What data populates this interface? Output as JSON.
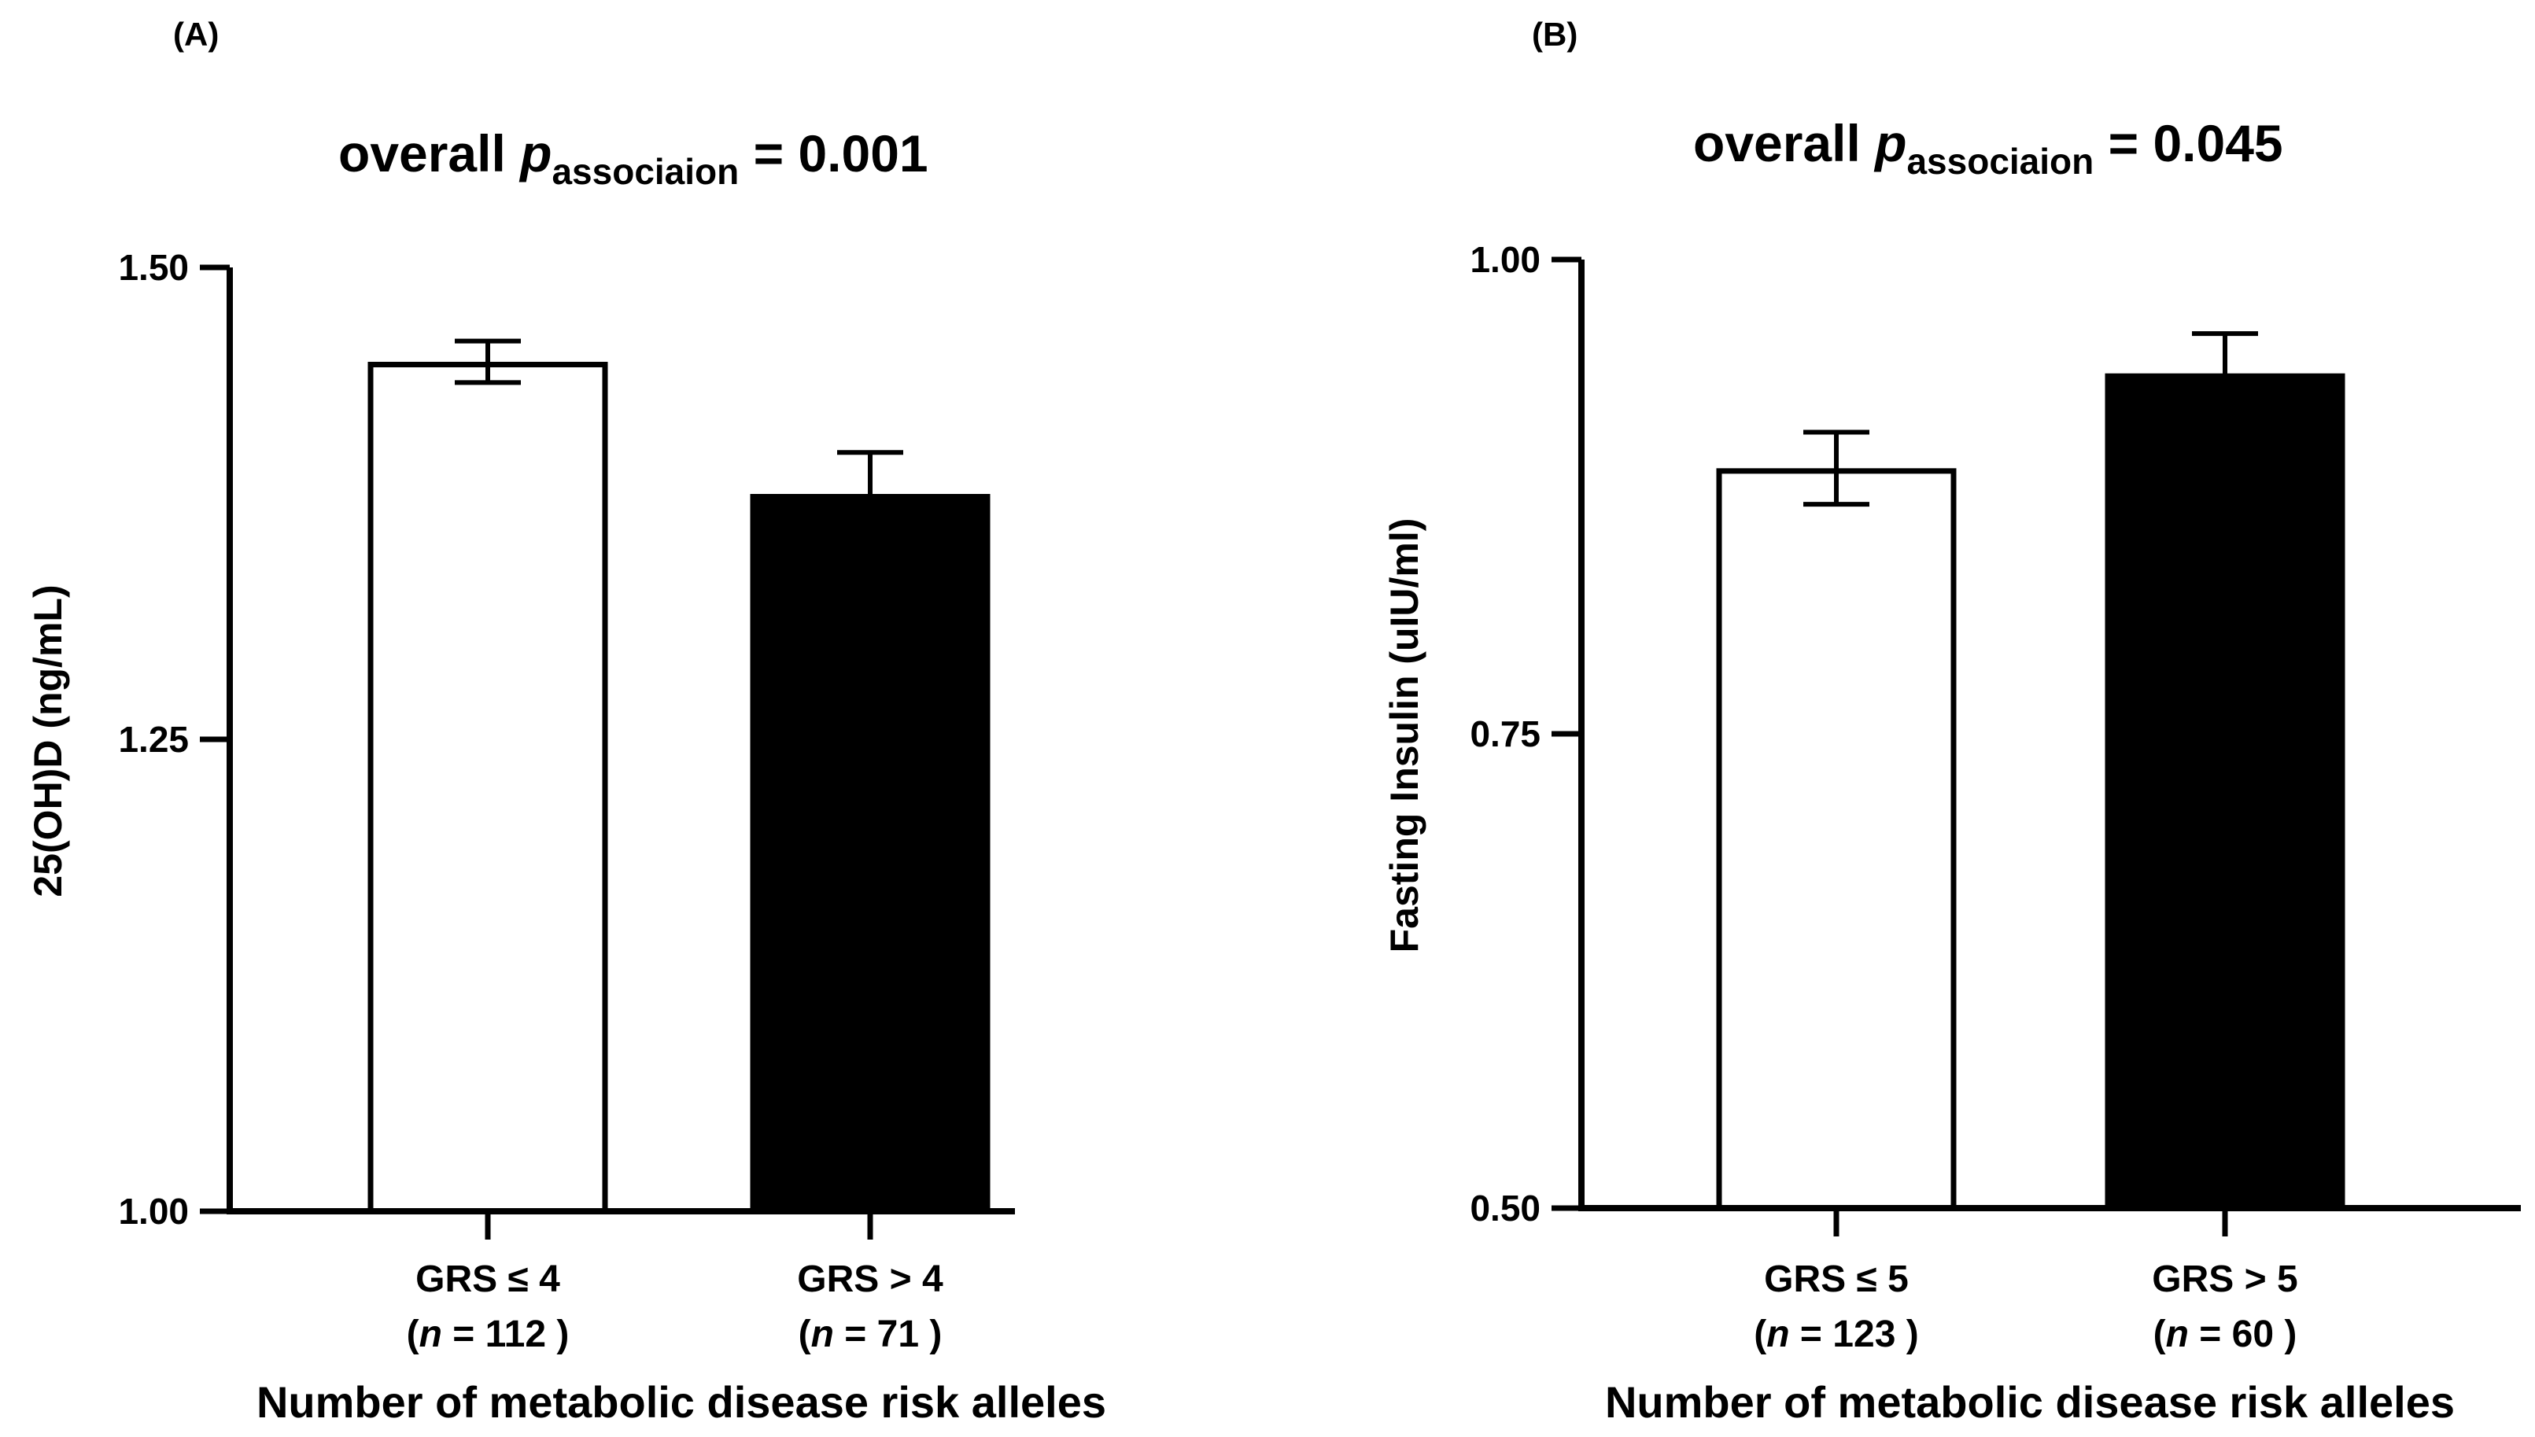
{
  "chart_data": [
    {
      "type": "bar",
      "panel_label": "(A)",
      "title": {
        "prefix": "overall ",
        "italic": "p",
        "subscript": "associaion",
        "suffix": " = 0.001"
      },
      "ylabel": "25(OH)D (ng/mL)",
      "xlabel": "Number of metabolic disease risk alleles",
      "ylim": [
        1.0,
        1.5
      ],
      "yticks": [
        1.0,
        1.25,
        1.5
      ],
      "ytick_labels": [
        "1.00",
        "1.25",
        "1.50"
      ],
      "categories": [
        {
          "label": "GRS ≤ 4",
          "n_prefix": "(",
          "n_italic": "n",
          "n_suffix": " = 112 )"
        },
        {
          "label": "GRS > 4",
          "n_prefix": "(",
          "n_italic": "n",
          "n_suffix": " = 71 )"
        }
      ],
      "values": [
        1.45,
        1.38
      ],
      "errors": [
        0.011,
        0.022
      ],
      "colors": [
        "#ffffff",
        "#000000"
      ]
    },
    {
      "type": "bar",
      "panel_label": "(B)",
      "title": {
        "prefix": "overall ",
        "italic": "p",
        "subscript": "associaion",
        "suffix": " = 0.045"
      },
      "ylabel": "Fasting Insulin (uIU/ml)",
      "xlabel": "Number of metabolic disease risk alleles",
      "ylim": [
        0.5,
        1.0
      ],
      "yticks": [
        0.5,
        0.75,
        1.0
      ],
      "ytick_labels": [
        "0.50",
        "0.75",
        "1.00"
      ],
      "categories": [
        {
          "label": "GRS ≤ 5",
          "n_prefix": "(",
          "n_italic": "n",
          "n_suffix": " = 123 )"
        },
        {
          "label": "GRS > 5",
          "n_prefix": "(",
          "n_italic": "n",
          "n_suffix": " = 60 )"
        }
      ],
      "values": [
        0.89,
        0.94
      ],
      "errors": [
        0.019,
        0.021
      ],
      "colors": [
        "#ffffff",
        "#000000"
      ]
    }
  ]
}
